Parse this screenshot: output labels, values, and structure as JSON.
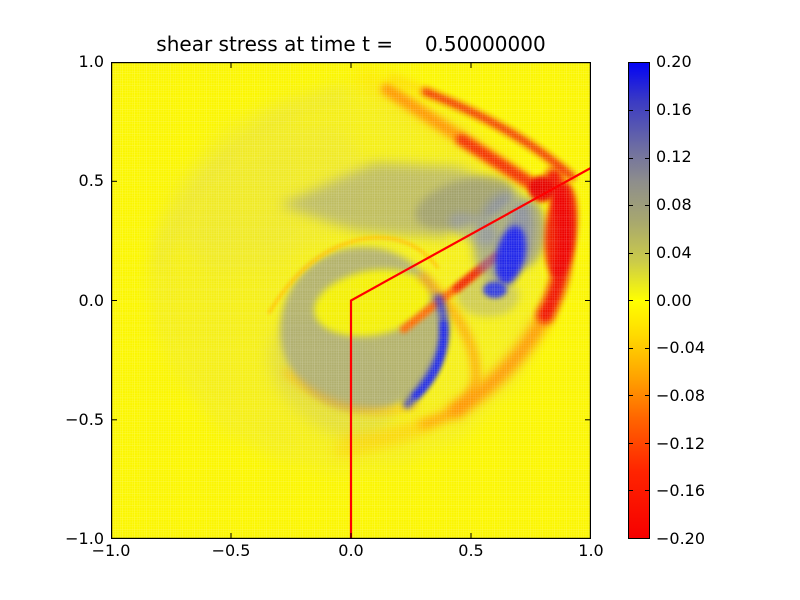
{
  "chart_data": {
    "type": "heatmap",
    "title": "shear stress at time t =     0.50000000",
    "x_range": [
      -1.0,
      1.0
    ],
    "y_range": [
      -1.0,
      1.0
    ],
    "x_ticks": [
      -1.0,
      -0.5,
      0.0,
      0.5,
      1.0
    ],
    "x_tick_labels": [
      "−1.0",
      "−0.5",
      "0.0",
      "0.5",
      "1.0"
    ],
    "y_ticks": [
      1.0,
      0.5,
      0.0,
      -0.5,
      -1.0
    ],
    "y_tick_labels": [
      "1.0",
      "0.5",
      "0.0",
      "−0.5",
      "−1.0"
    ],
    "zero_color": "#fbf600",
    "grid": {
      "nx": 200,
      "ny": 200,
      "color": "rgba(255,255,255,0.32)",
      "width": 0.55,
      "block_step": 12,
      "block_color": "rgba(255,255,255,0.10)",
      "block_width": 1
    },
    "colorbar": {
      "min": -0.2,
      "max": 0.2,
      "tick_labels": [
        "0.20",
        "0.16",
        "0.12",
        "0.08",
        "0.04",
        "0.00",
        "−0.04",
        "−0.08",
        "−0.12",
        "−0.16",
        "−0.20"
      ],
      "stops": [
        {
          "p": 0,
          "c": "#0404f4"
        },
        {
          "p": 8,
          "c": "#3a3ac4"
        },
        {
          "p": 18,
          "c": "#6e6ea2"
        },
        {
          "p": 25,
          "c": "#8e8e8c"
        },
        {
          "p": 33,
          "c": "#a6a670"
        },
        {
          "p": 42,
          "c": "#cccc48"
        },
        {
          "p": 50,
          "c": "#ffff00"
        },
        {
          "p": 57,
          "c": "#ffdc00"
        },
        {
          "p": 66,
          "c": "#ffa400"
        },
        {
          "p": 75,
          "c": "#ff6400"
        },
        {
          "p": 86,
          "c": "#ff2400"
        },
        {
          "p": 100,
          "c": "#f60000"
        }
      ]
    },
    "overlay_line": {
      "color": "#ff0000",
      "width": 2.2,
      "points": [
        [
          0,
          -1
        ],
        [
          0,
          0
        ],
        [
          1.0,
          0.556
        ]
      ]
    },
    "features": [
      {
        "name": "outer-wave-disc",
        "shape": "ellipse",
        "c": [
          -0.01,
          0.09
        ],
        "r": [
          0.83,
          0.81
        ],
        "fill": "#ece63a",
        "opacity": 0.38,
        "blur": 7
      },
      {
        "name": "outer-rim-shading",
        "shape": "path",
        "d": [
          [
            "M",
            -0.8,
            0.16
          ],
          [
            "Q",
            -0.64,
            0.7,
            -0.04,
            0.87
          ]
        ],
        "stroke": "#e2dc4a",
        "w": 12,
        "opacity": 0.33,
        "blur": 7
      },
      {
        "name": "upper-left-shading",
        "shape": "ellipse",
        "c": [
          -0.33,
          0.43
        ],
        "r": [
          0.42,
          0.26
        ],
        "rot": -28,
        "fill": "#e4de52",
        "opacity": 0.25,
        "blur": 8
      },
      {
        "name": "gray-wedge",
        "shape": "polygon",
        "points": [
          [
            -0.3,
            0.4
          ],
          [
            0.1,
            0.58
          ],
          [
            0.44,
            0.56
          ],
          [
            0.7,
            0.45
          ],
          [
            0.38,
            0.26
          ],
          [
            0.02,
            0.29
          ]
        ],
        "fill": "#aaaa7c",
        "opacity": 0.7,
        "blur": 6
      },
      {
        "name": "gray-wedge-core",
        "shape": "ellipse",
        "c": [
          0.47,
          0.41
        ],
        "r": [
          0.21,
          0.095
        ],
        "rot": -17,
        "fill": "#99996f",
        "opacity": 0.75,
        "blur": 4
      },
      {
        "name": "gray-right-patch",
        "shape": "ellipse",
        "c": [
          0.73,
          0.28
        ],
        "r": [
          0.08,
          0.145
        ],
        "rot": 6,
        "fill": "#9c9c82",
        "opacity": 0.8,
        "blur": 4
      },
      {
        "name": "gray-below-blue",
        "shape": "ellipse",
        "c": [
          0.57,
          0.02
        ],
        "r": [
          0.13,
          0.09
        ],
        "fill": "#b2b27c",
        "opacity": 0.55,
        "blur": 4
      },
      {
        "name": "gray-tail",
        "shape": "ellipse",
        "c": [
          -0.08,
          -0.33
        ],
        "r": [
          0.3,
          0.2
        ],
        "rot": 40,
        "fill": "#c6c26e",
        "opacity": 0.33,
        "blur": 7
      },
      {
        "name": "inclusion-gray-circle",
        "shape": "circle",
        "c": [
          0.05,
          -0.12
        ],
        "r": 0.345,
        "fill": "#a8a87a",
        "opacity": 0.85,
        "blur": 3.5
      },
      {
        "name": "inclusion-yellow-interior",
        "shape": "ellipse",
        "c": [
          0.09,
          -0.01
        ],
        "r": [
          0.245,
          0.135
        ],
        "rot": -10,
        "fill": "#f8f400",
        "opacity": 0.95,
        "blur": 3.5
      },
      {
        "name": "circle-bottom-halo",
        "shape": "path",
        "d": [
          [
            "M",
            -0.27,
            -0.3
          ],
          [
            "Q",
            -0.02,
            -0.53,
            0.27,
            -0.44
          ]
        ],
        "stroke": "#ffaa00",
        "w": 7,
        "opacity": 0.5,
        "blur": 4
      },
      {
        "name": "circle-top-edge-line",
        "shape": "path",
        "d": [
          [
            "M",
            -0.34,
            -0.05
          ],
          [
            "Q",
            -0.18,
            0.22,
            0.06,
            0.26
          ],
          [
            "Q",
            0.25,
            0.285,
            0.36,
            0.14
          ]
        ],
        "stroke": "#ffc400",
        "w": 3.5,
        "opacity": 0.95,
        "blur": 1.5
      },
      {
        "name": "outer-arc-tail",
        "shape": "path",
        "d": [
          [
            "M",
            0.44,
            -0.46
          ],
          [
            "Q",
            0.22,
            -0.585,
            -0.04,
            -0.63
          ]
        ],
        "stroke": "#ffc000",
        "w": 13,
        "opacity": 0.45,
        "blur": 6
      },
      {
        "name": "outer-arc-lower",
        "shape": "path",
        "d": [
          [
            "M",
            0.81,
            -0.06
          ],
          [
            "Q",
            0.68,
            -0.3,
            0.44,
            -0.46
          ]
        ],
        "stroke": "#ff8400",
        "w": 15,
        "opacity": 0.8,
        "blur": 5
      },
      {
        "name": "inner-arc",
        "shape": "path",
        "d": [
          [
            "M",
            0.3,
            0.1
          ],
          [
            "Q",
            0.53,
            -0.13,
            0.52,
            -0.33
          ],
          [
            "Q",
            0.5,
            -0.46,
            0.3,
            -0.52
          ]
        ],
        "stroke": "#ff9400",
        "w": 9,
        "opacity": 0.7,
        "blur": 4
      },
      {
        "name": "inner-arc-tail",
        "shape": "path",
        "d": [
          [
            "M",
            0.3,
            -0.52
          ],
          [
            "Q",
            0.12,
            -0.585,
            -0.03,
            -0.575
          ]
        ],
        "stroke": "#ffc400",
        "w": 8,
        "opacity": 0.4,
        "blur": 5
      },
      {
        "name": "upper-band-halo",
        "shape": "path",
        "d": [
          [
            "M",
            0.06,
            0.93
          ],
          [
            "L",
            0.64,
            0.57
          ]
        ],
        "stroke": "#ffcc00",
        "w": 20,
        "opacity": 0.3,
        "blur": 8
      },
      {
        "name": "upper-band",
        "shape": "path",
        "d": [
          [
            "M",
            0.15,
            0.885
          ],
          [
            "L",
            0.785,
            0.465
          ]
        ],
        "stroke": "#ff9100",
        "w": 12,
        "opacity": 0.9,
        "blur": 3.5
      },
      {
        "name": "upper-band-hot",
        "shape": "path",
        "d": [
          [
            "M",
            0.46,
            0.675
          ],
          [
            "L",
            0.79,
            0.465
          ]
        ],
        "stroke": "#f22800",
        "w": 11,
        "opacity": 0.9,
        "blur": 3
      },
      {
        "name": "red-arc-top-leadin",
        "shape": "path",
        "d": [
          [
            "M",
            0.17,
            0.935
          ],
          [
            "L",
            0.33,
            0.87
          ]
        ],
        "stroke": "#ffb400",
        "w": 7,
        "opacity": 0.4,
        "blur": 4
      },
      {
        "name": "red-arc-top",
        "shape": "path",
        "d": [
          [
            "M",
            0.31,
            0.875
          ],
          [
            "Q",
            0.68,
            0.73,
            0.92,
            0.52
          ]
        ],
        "stroke": "#f01400",
        "w": 8,
        "opacity": 0.85,
        "blur": 3
      },
      {
        "name": "red-band-right",
        "shape": "path",
        "d": [
          [
            "M",
            0.845,
            0.52
          ],
          [
            "Q",
            0.95,
            0.21,
            0.81,
            -0.06
          ]
        ],
        "stroke": "#f00a00",
        "w": 17,
        "opacity": 0.95,
        "blur": 3.5
      },
      {
        "name": "red-band-core",
        "shape": "ellipse",
        "c": [
          0.875,
          0.295
        ],
        "r": [
          0.065,
          0.2
        ],
        "rot": 6,
        "fill": "#ee0600",
        "opacity": 0.85,
        "blur": 3
      },
      {
        "name": "convergence-hotspot",
        "shape": "circle",
        "c": [
          0.795,
          0.468
        ],
        "r": 0.055,
        "fill": "#e60000",
        "opacity": 0.95,
        "blur": 2.5
      },
      {
        "name": "bright-streak",
        "shape": "path",
        "d": [
          [
            "M",
            0.22,
            -0.12
          ],
          [
            "L",
            0.6,
            0.18
          ]
        ],
        "stroke": "#ff6600",
        "w": 8,
        "opacity": 0.95,
        "blur": 2.5
      },
      {
        "name": "bright-streak-hot",
        "shape": "path",
        "d": [
          [
            "M",
            0.44,
            0.05
          ],
          [
            "L",
            0.61,
            0.19
          ]
        ],
        "stroke": "#ee2000",
        "w": 7.5,
        "opacity": 0.9,
        "blur": 2
      },
      {
        "name": "slate-patch-under-line",
        "shape": "ellipse",
        "c": [
          0.51,
          0.3
        ],
        "r": [
          0.11,
          0.055
        ],
        "rot": 25,
        "fill": "#8890b8",
        "opacity": 0.45,
        "blur": 4
      },
      {
        "name": "blue-halo",
        "shape": "ellipse",
        "c": [
          0.635,
          0.27
        ],
        "r": [
          0.12,
          0.19
        ],
        "rot": 14,
        "fill": "#7780ba",
        "opacity": 0.6,
        "blur": 5
      },
      {
        "name": "blue-blob",
        "shape": "ellipse",
        "c": [
          0.665,
          0.19
        ],
        "r": [
          0.06,
          0.125
        ],
        "rot": 12,
        "fill": "#1a22ee",
        "opacity": 0.95,
        "blur": 3
      },
      {
        "name": "blue-small",
        "shape": "ellipse",
        "c": [
          0.6,
          0.045
        ],
        "r": [
          0.05,
          0.035
        ],
        "fill": "#2830ea",
        "opacity": 0.9,
        "blur": 2.5
      },
      {
        "name": "blue-crescent",
        "shape": "path",
        "d": [
          [
            "M",
            0.365,
            0.01
          ],
          [
            "Q",
            0.45,
            -0.21,
            0.235,
            -0.435
          ]
        ],
        "stroke": "#2a30dd",
        "w": 9,
        "opacity": 0.8,
        "blur": 3
      },
      {
        "name": "blue-crescent-deep",
        "shape": "path",
        "d": [
          [
            "M",
            0.385,
            -0.1
          ],
          [
            "Q",
            0.4,
            -0.28,
            0.27,
            -0.4
          ]
        ],
        "stroke": "#1822f2",
        "w": 7,
        "opacity": 0.85,
        "blur": 2
      }
    ]
  }
}
